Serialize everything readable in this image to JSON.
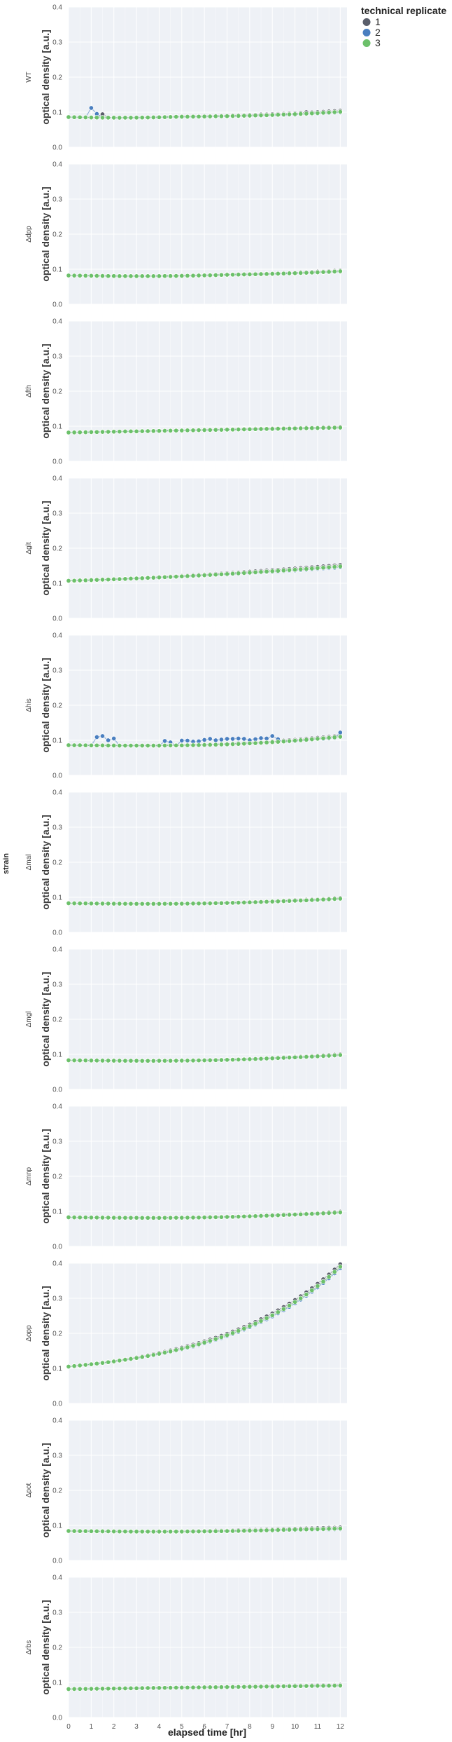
{
  "chart_data": {
    "type": "scatter",
    "facet_label": "strain",
    "xlabel": "elapsed time [hr]",
    "ylabel": "optical density [a.u.]",
    "xlim": [
      0,
      12.3
    ],
    "ylim": [
      0,
      0.4
    ],
    "x_ticks": [
      0,
      1,
      2,
      3,
      4,
      5,
      6,
      7,
      8,
      9,
      10,
      11,
      12
    ],
    "y_ticks": [
      0,
      0.1,
      0.2,
      0.3,
      0.4
    ],
    "grid": true,
    "legend": {
      "title": "technical replicate",
      "placement": "top-right outside",
      "entries": [
        {
          "label": "1",
          "color": "#5a5e6b"
        },
        {
          "label": "2",
          "color": "#4a7fc0"
        },
        {
          "label": "3",
          "color": "#6cc06a"
        }
      ]
    },
    "colors": {
      "replicate_1": "#5a5e6b",
      "replicate_2": "#4a7fc0",
      "replicate_3": "#6cc06a",
      "panel_bg": "#eef1f6"
    },
    "sampling": {
      "x_start": 0,
      "x_step": 0.25,
      "n_points": 49
    },
    "panels": [
      {
        "strain": "WT",
        "baseline": 0.086,
        "end": 0.101,
        "min_at": 0.2,
        "shape": "convex",
        "spread": 0.003,
        "outliers": [
          {
            "replicate": 2,
            "x": 1.0,
            "y": 0.112
          },
          {
            "replicate": 2,
            "x": 1.25,
            "y": 0.095
          },
          {
            "replicate": 1,
            "x": 1.5,
            "y": 0.094
          },
          {
            "replicate": 1,
            "x": 10.5,
            "y": 0.1
          }
        ]
      },
      {
        "strain": "Δdpp",
        "baseline": 0.082,
        "end": 0.094,
        "min_at": 0.3,
        "shape": "convex",
        "spread": 0.002,
        "outliers": []
      },
      {
        "strain": "Δfth",
        "baseline": 0.082,
        "end": 0.096,
        "min_at": 0.0,
        "shape": "linear",
        "spread": 0.002,
        "outliers": []
      },
      {
        "strain": "Δglt",
        "baseline": 0.107,
        "end": 0.148,
        "min_at": 0.0,
        "shape": "slight",
        "spread": 0.004,
        "outliers": []
      },
      {
        "strain": "Δhis",
        "baseline": 0.086,
        "end": 0.11,
        "min_at": 0.45,
        "shape": "convex",
        "spread": 0.003,
        "outliers": [
          {
            "replicate": 2,
            "x": 1.25,
            "y": 0.109
          },
          {
            "replicate": 2,
            "x": 1.5,
            "y": 0.112
          },
          {
            "replicate": 2,
            "x": 1.75,
            "y": 0.1
          },
          {
            "replicate": 2,
            "x": 2.0,
            "y": 0.105
          },
          {
            "replicate": 2,
            "x": 4.25,
            "y": 0.098
          },
          {
            "replicate": 2,
            "x": 4.5,
            "y": 0.094
          },
          {
            "replicate": 2,
            "x": 5.0,
            "y": 0.099
          },
          {
            "replicate": 2,
            "x": 5.25,
            "y": 0.099
          },
          {
            "replicate": 2,
            "x": 5.5,
            "y": 0.096
          },
          {
            "replicate": 2,
            "x": 5.75,
            "y": 0.097
          },
          {
            "replicate": 2,
            "x": 6.0,
            "y": 0.101
          },
          {
            "replicate": 2,
            "x": 6.25,
            "y": 0.104
          },
          {
            "replicate": 2,
            "x": 6.5,
            "y": 0.1
          },
          {
            "replicate": 2,
            "x": 6.75,
            "y": 0.102
          },
          {
            "replicate": 2,
            "x": 7.0,
            "y": 0.104
          },
          {
            "replicate": 2,
            "x": 7.25,
            "y": 0.104
          },
          {
            "replicate": 2,
            "x": 7.5,
            "y": 0.105
          },
          {
            "replicate": 2,
            "x": 7.75,
            "y": 0.104
          },
          {
            "replicate": 2,
            "x": 8.0,
            "y": 0.1
          },
          {
            "replicate": 2,
            "x": 8.25,
            "y": 0.103
          },
          {
            "replicate": 2,
            "x": 8.5,
            "y": 0.106
          },
          {
            "replicate": 2,
            "x": 8.75,
            "y": 0.105
          },
          {
            "replicate": 2,
            "x": 9.0,
            "y": 0.112
          },
          {
            "replicate": 2,
            "x": 9.25,
            "y": 0.103
          },
          {
            "replicate": 2,
            "x": 11.0,
            "y": 0.104
          },
          {
            "replicate": 2,
            "x": 12.0,
            "y": 0.122
          }
        ]
      },
      {
        "strain": "Δmal",
        "baseline": 0.083,
        "end": 0.096,
        "min_at": 0.4,
        "shape": "convex",
        "spread": 0.002,
        "outliers": []
      },
      {
        "strain": "Δmgl",
        "baseline": 0.083,
        "end": 0.098,
        "min_at": 0.4,
        "shape": "convex",
        "spread": 0.002,
        "outliers": []
      },
      {
        "strain": "Δmnp",
        "baseline": 0.083,
        "end": 0.097,
        "min_at": 0.4,
        "shape": "convex",
        "spread": 0.002,
        "outliers": []
      },
      {
        "strain": "Δopp",
        "baseline": 0.105,
        "end": 0.39,
        "min_at": 0.0,
        "shape": "exp",
        "spread": 0.007,
        "outliers": []
      },
      {
        "strain": "Δpot",
        "baseline": 0.084,
        "end": 0.091,
        "min_at": 0.4,
        "shape": "convex",
        "spread": 0.003,
        "outliers": []
      },
      {
        "strain": "Δrbs",
        "baseline": 0.081,
        "end": 0.091,
        "min_at": 0.0,
        "shape": "linear",
        "spread": 0.002,
        "outliers": []
      }
    ]
  }
}
